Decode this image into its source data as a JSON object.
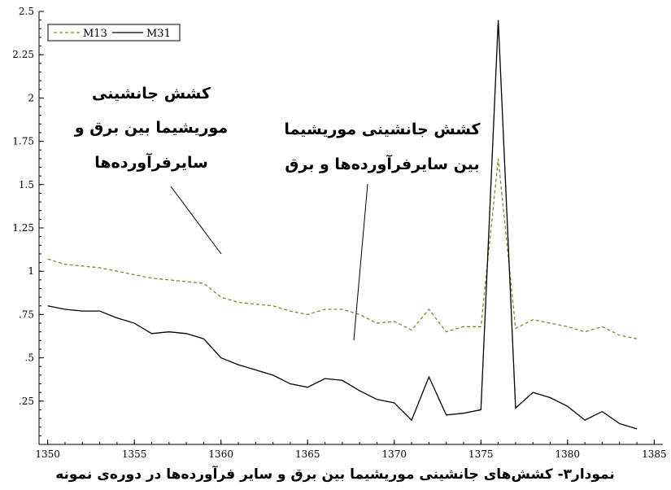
{
  "chart_data": {
    "type": "line",
    "title": "",
    "xlabel": "",
    "ylabel": "",
    "xlim": [
      1349.5,
      1385.5
    ],
    "ylim": [
      0,
      2.5
    ],
    "grid": false,
    "legend_position": "top-left",
    "x_ticks": [
      "1350",
      "1355",
      "1360",
      "1365",
      "1370",
      "1375",
      "1380",
      "1385"
    ],
    "y_ticks": [
      ".25",
      ".5",
      ".75",
      "1",
      "1.25",
      "1.5",
      "1.75",
      "2",
      "2.25",
      "2.5"
    ],
    "x": [
      1350,
      1351,
      1352,
      1353,
      1354,
      1355,
      1356,
      1357,
      1358,
      1359,
      1360,
      1361,
      1362,
      1363,
      1364,
      1365,
      1366,
      1367,
      1368,
      1369,
      1370,
      1371,
      1372,
      1373,
      1374,
      1375,
      1376,
      1377,
      1378,
      1379,
      1380,
      1381,
      1382,
      1383,
      1384
    ],
    "series": [
      {
        "name": "M13",
        "color": "#7a8c2a",
        "style": "dashed",
        "values": [
          1.07,
          1.04,
          1.03,
          1.02,
          1.0,
          0.98,
          0.96,
          0.95,
          0.94,
          0.93,
          0.85,
          0.82,
          0.81,
          0.8,
          0.77,
          0.75,
          0.78,
          0.78,
          0.75,
          0.7,
          0.71,
          0.66,
          0.78,
          0.65,
          0.68,
          0.68,
          1.65,
          0.67,
          0.72,
          0.7,
          0.68,
          0.65,
          0.68,
          0.63,
          0.61
        ]
      },
      {
        "name": "M31",
        "color": "#000000",
        "style": "solid",
        "values": [
          0.8,
          0.78,
          0.77,
          0.77,
          0.73,
          0.7,
          0.64,
          0.65,
          0.64,
          0.61,
          0.5,
          0.46,
          0.43,
          0.4,
          0.35,
          0.33,
          0.38,
          0.37,
          0.31,
          0.26,
          0.24,
          0.14,
          0.39,
          0.17,
          0.18,
          0.2,
          2.45,
          0.21,
          0.3,
          0.27,
          0.22,
          0.14,
          0.19,
          0.12,
          0.09
        ]
      }
    ],
    "annotations": [
      {
        "id": "left",
        "lines": [
          "کشش جانشینی",
          "موریشیما بین برق و",
          "سایرفرآورده‌ها"
        ]
      },
      {
        "id": "right",
        "lines": [
          "کشش جانشینی موریشیما",
          "بین سایرفرآورده‌ها و برق"
        ]
      }
    ],
    "caption": "نمودار۳- کشش‌های جانشینی موریشیما بین برق و سایر فرآورده‌ها در دوره‌ی نمونه"
  }
}
